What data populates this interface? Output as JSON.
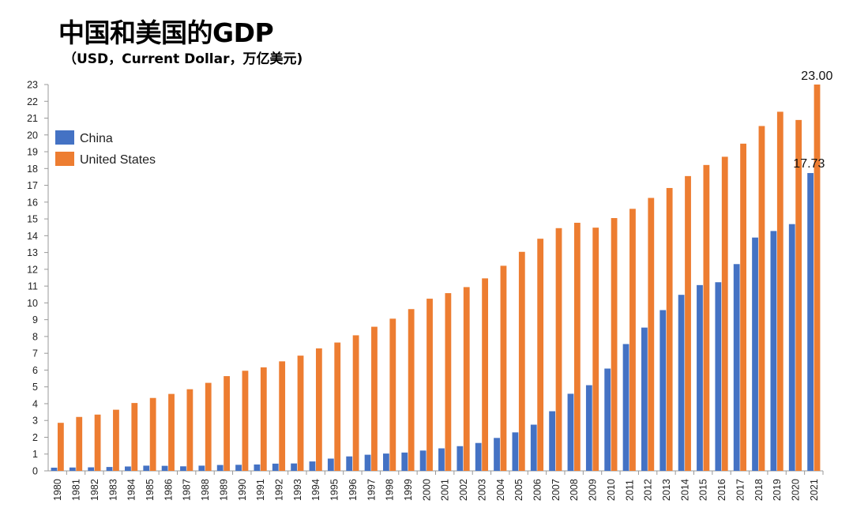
{
  "title": "中国和美国的GDP",
  "subtitle": "（USD，Current Dollar，万亿美元)",
  "chart_data": {
    "type": "bar",
    "categories": [
      "1980",
      "1981",
      "1982",
      "1983",
      "1984",
      "1985",
      "1986",
      "1987",
      "1988",
      "1989",
      "1990",
      "1991",
      "1992",
      "1993",
      "1994",
      "1995",
      "1996",
      "1997",
      "1998",
      "1999",
      "2000",
      "2001",
      "2002",
      "2003",
      "2004",
      "2005",
      "2006",
      "2007",
      "2008",
      "2009",
      "2010",
      "2011",
      "2012",
      "2013",
      "2014",
      "2015",
      "2016",
      "2017",
      "2018",
      "2019",
      "2020",
      "2021"
    ],
    "series": [
      {
        "name": "China",
        "color": "#4472c4",
        "values": [
          0.19,
          0.2,
          0.21,
          0.23,
          0.26,
          0.31,
          0.3,
          0.27,
          0.31,
          0.35,
          0.36,
          0.38,
          0.43,
          0.44,
          0.56,
          0.73,
          0.86,
          0.96,
          1.03,
          1.09,
          1.21,
          1.34,
          1.47,
          1.66,
          1.96,
          2.29,
          2.75,
          3.55,
          4.59,
          5.1,
          6.09,
          7.55,
          8.53,
          9.57,
          10.48,
          11.06,
          11.23,
          12.31,
          13.89,
          14.28,
          14.69,
          17.73
        ]
      },
      {
        "name": "United States",
        "color": "#ed7d31",
        "values": [
          2.86,
          3.21,
          3.35,
          3.64,
          4.04,
          4.34,
          4.58,
          4.86,
          5.24,
          5.64,
          5.96,
          6.16,
          6.52,
          6.86,
          7.29,
          7.64,
          8.07,
          8.58,
          9.06,
          9.63,
          10.25,
          10.58,
          10.94,
          11.46,
          12.21,
          13.04,
          13.82,
          14.45,
          14.77,
          14.48,
          15.05,
          15.6,
          16.25,
          16.84,
          17.55,
          18.21,
          18.7,
          19.48,
          20.53,
          21.38,
          20.89,
          23.0
        ]
      }
    ],
    "ylim": [
      0,
      23
    ],
    "yticks": [
      0,
      1,
      2,
      3,
      4,
      5,
      6,
      7,
      8,
      9,
      10,
      11,
      12,
      13,
      14,
      15,
      16,
      17,
      18,
      19,
      20,
      21,
      22,
      23
    ],
    "data_labels": [
      {
        "series": "United States",
        "category": "2021",
        "text": "23.00"
      },
      {
        "series": "China",
        "category": "2021",
        "text": "17.73"
      }
    ],
    "legend": {
      "position": "top-left",
      "entries": [
        "China",
        "United States"
      ]
    },
    "grid": false,
    "xlabel": "",
    "ylabel": ""
  }
}
